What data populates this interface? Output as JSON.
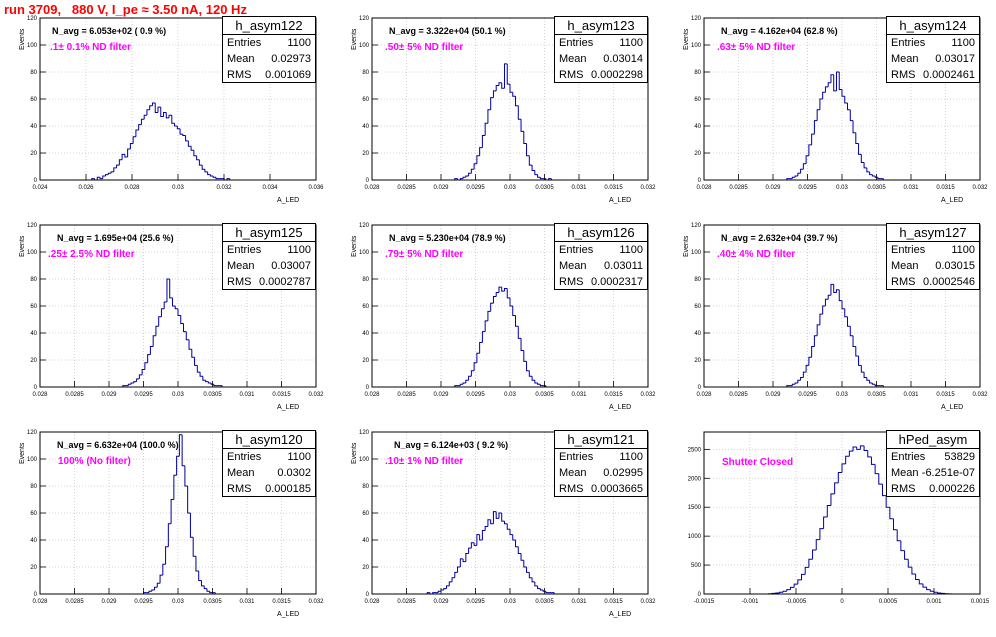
{
  "title": "run 3709,   880 V, I_pe ≈ 3.50 nA, 120 Hz",
  "chart_data": [
    {
      "type": "bar",
      "hist_name": "h_asym122",
      "stats": {
        "entries_label": "Entries",
        "entries": "1100",
        "mean_label": "Mean",
        "mean": "0.02973",
        "rms_label": "RMS",
        "rms": "0.001069"
      },
      "n_avg": "N_avg = 6.053e+02 ( 0.9 %)",
      "annotation": ".1± 0.1% ND filter",
      "ylabel": "Events",
      "xlabel": "A_LED",
      "xlim": [
        0.024,
        0.036
      ],
      "ylim": [
        0,
        120
      ],
      "xticks": [
        0.024,
        0.026,
        0.028,
        0.03,
        0.032,
        0.034,
        0.036
      ],
      "xtick_labels": [
        "0.024",
        "0.026",
        "0.028",
        "0.03",
        "0.032",
        "0.034",
        "0.036"
      ],
      "yticks": [
        0,
        20,
        40,
        60,
        80,
        100,
        120
      ],
      "ytick_labels": [
        "0",
        "20",
        "40",
        "60",
        "80",
        "100",
        "120"
      ],
      "bin_start": 0.02625,
      "bin_width": 0.00012,
      "counts": [
        1,
        0,
        2,
        1,
        3,
        4,
        5,
        6,
        9,
        11,
        15,
        19,
        17,
        23,
        27,
        32,
        37,
        41,
        45,
        48,
        52,
        55,
        57,
        50,
        54,
        47,
        50,
        46,
        48,
        42,
        40,
        38,
        34,
        33,
        29,
        25,
        22,
        18,
        15,
        11,
        8,
        6,
        4,
        3,
        2,
        1,
        1,
        1,
        0,
        1,
        0,
        0
      ]
    },
    {
      "type": "bar",
      "hist_name": "h_asym123",
      "stats": {
        "entries_label": "Entries",
        "entries": "1100",
        "mean_label": "Mean",
        "mean": "0.03014",
        "rms_label": "RMS",
        "rms": "0.0002298"
      },
      "n_avg": "N_avg = 3.322e+04 (50.1 %)",
      "annotation": ".50± 5% ND filter",
      "ylabel": "Events",
      "xlabel": "A_LED",
      "xlim": [
        0.028,
        0.032
      ],
      "ylim": [
        0,
        120
      ],
      "xticks": [
        0.028,
        0.0285,
        0.029,
        0.0295,
        0.03,
        0.0305,
        0.031,
        0.0315,
        0.032
      ],
      "xtick_labels": [
        "0.028",
        "0.0285",
        "0.029",
        "0.0295",
        "0.03",
        "0.0305",
        "0.031",
        "0.0315",
        "0.032"
      ],
      "yticks": [
        0,
        20,
        40,
        60,
        80,
        100,
        120
      ],
      "ytick_labels": [
        "0",
        "20",
        "40",
        "60",
        "80",
        "100",
        "120"
      ],
      "bin_start": 0.0292,
      "bin_width": 4e-05,
      "counts": [
        1,
        0,
        1,
        2,
        3,
        5,
        8,
        12,
        18,
        24,
        33,
        42,
        52,
        61,
        66,
        70,
        72,
        68,
        86,
        71,
        65,
        62,
        55,
        45,
        36,
        27,
        18,
        11,
        7,
        4,
        2,
        1,
        1,
        0,
        1
      ]
    },
    {
      "type": "bar",
      "hist_name": "h_asym124",
      "stats": {
        "entries_label": "Entries",
        "entries": "1100",
        "mean_label": "Mean",
        "mean": "0.03017",
        "rms_label": "RMS",
        "rms": "0.0002461"
      },
      "n_avg": "N_avg = 4.162e+04 (62.8 %)",
      "annotation": ".63± 5% ND filter",
      "ylabel": "Events",
      "xlabel": "A_LED",
      "xlim": [
        0.028,
        0.032
      ],
      "ylim": [
        0,
        120
      ],
      "xticks": [
        0.028,
        0.0285,
        0.029,
        0.0295,
        0.03,
        0.0305,
        0.031,
        0.0315,
        0.032
      ],
      "xtick_labels": [
        "0.028",
        "0.0285",
        "0.029",
        "0.0295",
        "0.03",
        "0.0305",
        "0.031",
        "0.0315",
        "0.032"
      ],
      "yticks": [
        0,
        20,
        40,
        60,
        80,
        100,
        120
      ],
      "ytick_labels": [
        "0",
        "20",
        "40",
        "60",
        "80",
        "100",
        "120"
      ],
      "bin_start": 0.0292,
      "bin_width": 4e-05,
      "counts": [
        1,
        1,
        2,
        3,
        5,
        8,
        12,
        18,
        26,
        34,
        44,
        52,
        60,
        65,
        69,
        72,
        78,
        66,
        80,
        67,
        62,
        57,
        52,
        44,
        35,
        27,
        19,
        13,
        9,
        6,
        4,
        3,
        2,
        1,
        1
      ]
    },
    {
      "type": "bar",
      "hist_name": "h_asym125",
      "stats": {
        "entries_label": "Entries",
        "entries": "1100",
        "mean_label": "Mean",
        "mean": "0.03007",
        "rms_label": "RMS",
        "rms": "0.0002787"
      },
      "n_avg": "N_avg = 1.695e+04 (25.6 %)",
      "annotation": ".25± 2.5% ND filter",
      "ylabel": "Events",
      "xlabel": "A_LED",
      "xlim": [
        0.028,
        0.032
      ],
      "ylim": [
        0,
        120
      ],
      "xticks": [
        0.028,
        0.0285,
        0.029,
        0.0295,
        0.03,
        0.0305,
        0.031,
        0.0315,
        0.032
      ],
      "xtick_labels": [
        "0.028",
        "0.0285",
        "0.029",
        "0.0295",
        "0.03",
        "0.0305",
        "0.031",
        "0.0315",
        "0.032"
      ],
      "yticks": [
        0,
        20,
        40,
        60,
        80,
        100,
        120
      ],
      "ytick_labels": [
        "0",
        "20",
        "40",
        "60",
        "80",
        "100",
        "120"
      ],
      "bin_start": 0.0292,
      "bin_width": 4e-05,
      "counts": [
        1,
        1,
        2,
        3,
        4,
        6,
        9,
        13,
        18,
        24,
        30,
        38,
        45,
        52,
        58,
        63,
        80,
        66,
        60,
        58,
        53,
        47,
        41,
        35,
        28,
        22,
        16,
        11,
        8,
        5,
        4,
        3,
        2,
        1,
        1,
        1
      ]
    },
    {
      "type": "bar",
      "hist_name": "h_asym126",
      "stats": {
        "entries_label": "Entries",
        "entries": "1100",
        "mean_label": "Mean",
        "mean": "0.03011",
        "rms_label": "RMS",
        "rms": "0.0002317"
      },
      "n_avg": "N_avg = 5.230e+04 (78.9 %)",
      "annotation": ".79± 5% ND filter",
      "ylabel": "Events",
      "xlabel": "A_LED",
      "xlim": [
        0.028,
        0.032
      ],
      "ylim": [
        0,
        120
      ],
      "xticks": [
        0.028,
        0.0285,
        0.029,
        0.0295,
        0.03,
        0.0305,
        0.031,
        0.0315,
        0.032
      ],
      "xtick_labels": [
        "0.028",
        "0.0285",
        "0.029",
        "0.0295",
        "0.03",
        "0.0305",
        "0.031",
        "0.0315",
        "0.032"
      ],
      "yticks": [
        0,
        20,
        40,
        60,
        80,
        100,
        120
      ],
      "ytick_labels": [
        "0",
        "20",
        "40",
        "60",
        "80",
        "100",
        "120"
      ],
      "bin_start": 0.0292,
      "bin_width": 4e-05,
      "counts": [
        1,
        1,
        2,
        3,
        5,
        8,
        12,
        18,
        25,
        33,
        41,
        49,
        56,
        62,
        67,
        70,
        74,
        71,
        73,
        66,
        60,
        53,
        45,
        36,
        27,
        19,
        12,
        8,
        5,
        3,
        2,
        1,
        1
      ]
    },
    {
      "type": "bar",
      "hist_name": "h_asym127",
      "stats": {
        "entries_label": "Entries",
        "entries": "1100",
        "mean_label": "Mean",
        "mean": "0.03015",
        "rms_label": "RMS",
        "rms": "0.0002546"
      },
      "n_avg": "N_avg = 2.632e+04 (39.7 %)",
      "annotation": ".40± 4% ND filter",
      "ylabel": "Events",
      "xlabel": "A_LED",
      "xlim": [
        0.028,
        0.032
      ],
      "ylim": [
        0,
        120
      ],
      "xticks": [
        0.028,
        0.0285,
        0.029,
        0.0295,
        0.03,
        0.0305,
        0.031,
        0.0315,
        0.032
      ],
      "xtick_labels": [
        "0.028",
        "0.0285",
        "0.029",
        "0.0295",
        "0.03",
        "0.0305",
        "0.031",
        "0.0315",
        "0.032"
      ],
      "yticks": [
        0,
        20,
        40,
        60,
        80,
        100,
        120
      ],
      "ytick_labels": [
        "0",
        "20",
        "40",
        "60",
        "80",
        "100",
        "120"
      ],
      "bin_start": 0.0292,
      "bin_width": 4e-05,
      "counts": [
        1,
        1,
        2,
        3,
        5,
        7,
        11,
        16,
        22,
        30,
        38,
        46,
        54,
        60,
        65,
        68,
        76,
        70,
        72,
        64,
        58,
        52,
        45,
        38,
        30,
        23,
        16,
        11,
        7,
        5,
        3,
        2,
        1,
        1,
        1
      ]
    },
    {
      "type": "bar",
      "hist_name": "h_asym120",
      "stats": {
        "entries_label": "Entries",
        "entries": "1100",
        "mean_label": "Mean",
        "mean": "0.0302",
        "rms_label": "RMS",
        "rms": "0.000185"
      },
      "n_avg": "N_avg = 6.632e+04 (100.0 %)",
      "annotation": "100% (No filter)",
      "ylabel": "Events",
      "xlabel": "A_LED",
      "xlim": [
        0.028,
        0.032
      ],
      "ylim": [
        0,
        120
      ],
      "xticks": [
        0.028,
        0.0285,
        0.029,
        0.0295,
        0.03,
        0.0305,
        0.031,
        0.0315,
        0.032
      ],
      "xtick_labels": [
        "0.028",
        "0.0285",
        "0.029",
        "0.0295",
        "0.03",
        "0.0305",
        "0.031",
        "0.0315",
        "0.032"
      ],
      "yticks": [
        0,
        20,
        40,
        60,
        80,
        100,
        120
      ],
      "ytick_labels": [
        "0",
        "20",
        "40",
        "60",
        "80",
        "100",
        "120"
      ],
      "bin_start": 0.0295,
      "bin_width": 4e-05,
      "counts": [
        1,
        1,
        2,
        3,
        5,
        8,
        14,
        22,
        35,
        52,
        70,
        88,
        102,
        118,
        95,
        80,
        60,
        42,
        28,
        17,
        10,
        6,
        4,
        2,
        1,
        1
      ]
    },
    {
      "type": "bar",
      "hist_name": "h_asym121",
      "stats": {
        "entries_label": "Entries",
        "entries": "1100",
        "mean_label": "Mean",
        "mean": "0.02995",
        "rms_label": "RMS",
        "rms": "0.0003665"
      },
      "n_avg": "N_avg = 6.124e+03 ( 9.2 %)",
      "annotation": ".10± 1% ND filter",
      "ylabel": "Events",
      "xlabel": "A_LED",
      "xlim": [
        0.028,
        0.032
      ],
      "ylim": [
        0,
        120
      ],
      "xticks": [
        0.028,
        0.0285,
        0.029,
        0.0295,
        0.03,
        0.0305,
        0.031,
        0.0315,
        0.032
      ],
      "xtick_labels": [
        "0.028",
        "0.0285",
        "0.029",
        "0.0295",
        "0.03",
        "0.0305",
        "0.031",
        "0.0315",
        "0.032"
      ],
      "yticks": [
        0,
        20,
        40,
        60,
        80,
        100,
        120
      ],
      "ytick_labels": [
        "0",
        "20",
        "40",
        "60",
        "80",
        "100",
        "120"
      ],
      "bin_start": 0.0288,
      "bin_width": 4e-05,
      "counts": [
        1,
        0,
        1,
        1,
        2,
        3,
        4,
        6,
        9,
        12,
        16,
        20,
        26,
        24,
        30,
        34,
        38,
        36,
        44,
        40,
        47,
        50,
        55,
        52,
        61,
        56,
        60,
        54,
        52,
        48,
        44,
        40,
        35,
        30,
        25,
        20,
        16,
        12,
        9,
        6,
        4,
        3,
        2,
        1,
        1,
        1
      ]
    },
    {
      "type": "bar",
      "hist_name": "hPed_asym",
      "stats": {
        "entries_label": "Entries",
        "entries": "53829",
        "mean_label": "Mean",
        "mean": "-6.251e-07",
        "rms_label": "RMS",
        "rms": "0.000226"
      },
      "n_avg": "",
      "annotation": "Shutter Closed",
      "ylabel": "",
      "xlabel": "",
      "xlim": [
        -0.0015,
        0.0015
      ],
      "ylim": [
        0,
        2800
      ],
      "xticks": [
        -0.0015,
        -0.001,
        -0.0005,
        0,
        0.0005,
        0.001,
        0.0015
      ],
      "xtick_labels": [
        "-0.0015",
        "-0.001",
        "-0.0005",
        "0",
        "0.0005",
        "0.001",
        "0.0015"
      ],
      "yticks": [
        0,
        500,
        1000,
        1500,
        2000,
        2500
      ],
      "ytick_labels": [
        "0",
        "500",
        "1000",
        "1500",
        "2000",
        "2500"
      ],
      "bin_start": -0.0008,
      "bin_width": 4e-05,
      "counts": [
        5,
        10,
        18,
        30,
        48,
        75,
        115,
        170,
        245,
        340,
        460,
        600,
        760,
        940,
        1130,
        1330,
        1530,
        1730,
        1920,
        2100,
        2250,
        2380,
        2470,
        2540,
        2500,
        2560,
        2480,
        2370,
        2240,
        2080,
        1900,
        1700,
        1500,
        1300,
        1110,
        920,
        750,
        600,
        465,
        345,
        250,
        175,
        118,
        76,
        48,
        30,
        18,
        10,
        5,
        2
      ]
    }
  ]
}
